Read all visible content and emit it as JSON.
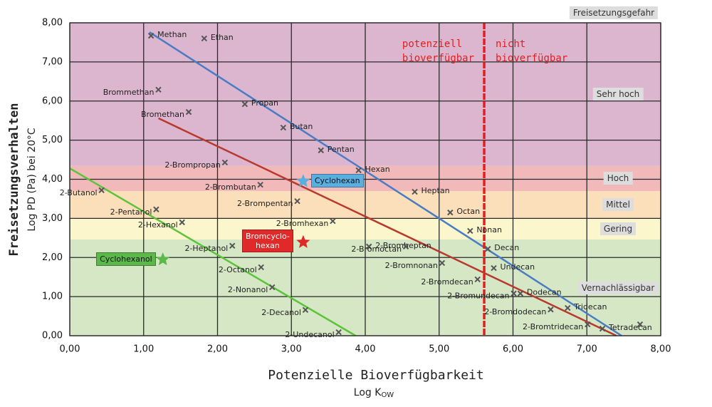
{
  "chart_data": {
    "type": "scatter",
    "x_label": "Potenzielle Bioverfügbarkeit",
    "x_unit": {
      "main": "Log K",
      "sub": "OW"
    },
    "y_label": "Freisetzungsverhalten",
    "y_unit": "Log PD (Pa) bei 20°C",
    "xlim": [
      0,
      8
    ],
    "ylim": [
      0,
      8
    ],
    "xticks": [
      {
        "value": 0,
        "label": "0,00"
      },
      {
        "value": 1,
        "label": "1,00"
      },
      {
        "value": 2,
        "label": "2,00"
      },
      {
        "value": 3,
        "label": "3,00"
      },
      {
        "value": 4,
        "label": "4,00"
      },
      {
        "value": 5,
        "label": "5,00"
      },
      {
        "value": 6,
        "label": "6,00"
      },
      {
        "value": 7,
        "label": "7,00"
      },
      {
        "value": 8,
        "label": "8,00"
      }
    ],
    "yticks": [
      {
        "value": 0,
        "label": "0,00"
      },
      {
        "value": 1,
        "label": "1,00"
      },
      {
        "value": 2,
        "label": "2,00"
      },
      {
        "value": 3,
        "label": "3,00"
      },
      {
        "value": 4,
        "label": "4,00"
      },
      {
        "value": 5,
        "label": "5,00"
      },
      {
        "value": 6,
        "label": "6,00"
      },
      {
        "value": 7,
        "label": "7,00"
      },
      {
        "value": 8,
        "label": "8,00"
      }
    ],
    "grid": true,
    "band_title": "Freisetzungsgefahr",
    "bands": [
      {
        "label": "Sehr hoch",
        "from": 4.34,
        "to": 8,
        "color": "#dcb6cf"
      },
      {
        "label": "Hoch",
        "from": 3.7,
        "to": 4.34,
        "color": "#f2b9bb"
      },
      {
        "label": "Mittel",
        "from": 3.0,
        "to": 3.7,
        "color": "#fbdfbb"
      },
      {
        "label": "Gering",
        "from": 2.46,
        "to": 3.0,
        "color": "#fcf6cc"
      },
      {
        "label": "Vernachlässigbar",
        "from": 0,
        "to": 2.46,
        "color": "#d5e7c5"
      }
    ],
    "threshold_x": 5.61,
    "threshold_color": "#e02020",
    "zone_labels": [
      [
        "potenziell",
        "bioverfügbar"
      ],
      [
        "nicht",
        "bioverfügbar"
      ]
    ],
    "marker_color": "#555555",
    "points": [
      {
        "name": "Methan",
        "x": 1.1,
        "y": 7.67
      },
      {
        "name": "Ethan",
        "x": 1.82,
        "y": 7.6
      },
      {
        "name": "Brommethan",
        "x": 1.2,
        "y": 6.29
      },
      {
        "name": "Propan",
        "x": 2.37,
        "y": 5.92
      },
      {
        "name": "Bromethan",
        "x": 1.61,
        "y": 5.72
      },
      {
        "name": "Butan",
        "x": 2.89,
        "y": 5.32
      },
      {
        "name": "Pentan",
        "x": 3.4,
        "y": 4.74
      },
      {
        "name": "2-Brompropan",
        "x": 2.1,
        "y": 4.43
      },
      {
        "name": "Hexan",
        "x": 3.91,
        "y": 4.23
      },
      {
        "name": "2-Brombutan",
        "x": 2.58,
        "y": 3.86
      },
      {
        "name": "2-Butanol",
        "x": 0.43,
        "y": 3.72
      },
      {
        "name": "Heptan",
        "x": 4.67,
        "y": 3.68
      },
      {
        "name": "2-Brompentan",
        "x": 3.08,
        "y": 3.44
      },
      {
        "name": "2-Pentanol",
        "x": 1.17,
        "y": 3.23
      },
      {
        "name": "Octan",
        "x": 5.15,
        "y": 3.15
      },
      {
        "name": "2-Bromhexan",
        "x": 3.56,
        "y": 2.93
      },
      {
        "name": "2-Hexanol",
        "x": 1.52,
        "y": 2.9
      },
      {
        "name": "Nonan",
        "x": 5.42,
        "y": 2.68
      },
      {
        "name": "2-Heptanol",
        "x": 2.2,
        "y": 2.3
      },
      {
        "name": "2-Bromheptan",
        "x": 4.05,
        "y": 2.28
      },
      {
        "name": "2-Bromoctan",
        "x": 4.55,
        "y": 2.28
      },
      {
        "name": "Decan",
        "x": 5.66,
        "y": 2.22
      },
      {
        "name": "2-Bromnonan",
        "x": 5.04,
        "y": 1.86
      },
      {
        "name": "2-Octanol",
        "x": 2.59,
        "y": 1.75
      },
      {
        "name": "Undecan",
        "x": 5.74,
        "y": 1.73
      },
      {
        "name": "2-Bromdecan",
        "x": 5.52,
        "y": 1.44
      },
      {
        "name": "2-Nonanol",
        "x": 2.74,
        "y": 1.24
      },
      {
        "name": "2-Bromundecan",
        "x": 6.01,
        "y": 1.08
      },
      {
        "name": "Dodecan",
        "x": 6.1,
        "y": 1.08
      },
      {
        "name": "2-Decanol",
        "x": 3.19,
        "y": 0.66
      },
      {
        "name": "2-Bromdodecan",
        "x": 6.51,
        "y": 0.67
      },
      {
        "name": "Tridecan",
        "x": 6.74,
        "y": 0.71
      },
      {
        "name": "2-Bromtridecan",
        "x": 7.01,
        "y": 0.29
      },
      {
        "name": "Tetradecan",
        "x": 7.21,
        "y": 0.18
      },
      {
        "name": "2-Undecanol",
        "x": 3.64,
        "y": 0.09
      },
      {
        "name": null,
        "x": 7.72,
        "y": 0.29
      }
    ],
    "highlights": [
      {
        "name": "Cyclohexan",
        "x": 3.16,
        "y": 3.95,
        "color": "#5aaee0"
      },
      {
        "name": "Bromcyclo-\nhexan",
        "x": 3.16,
        "y": 2.39,
        "color": "#e02a2a"
      },
      {
        "name": "Cyclohexanol",
        "x": 1.26,
        "y": 1.95,
        "color": "#5cb84a"
      }
    ],
    "trendlines": [
      {
        "color": "#4a7cc4",
        "x": [
          1.08,
          7.47
        ],
        "y": [
          7.76,
          0
        ]
      },
      {
        "color": "#b83a2e",
        "x": [
          1.2,
          7.4
        ],
        "y": [
          5.56,
          0
        ]
      },
      {
        "color": "#5cc43a",
        "x": [
          0,
          3.87
        ],
        "y": [
          4.28,
          0
        ]
      }
    ]
  }
}
